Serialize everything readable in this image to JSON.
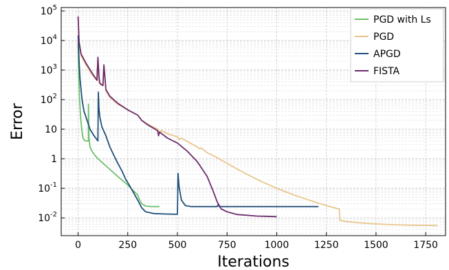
{
  "chart_data": {
    "type": "line",
    "title": "",
    "xlabel": "Iterations",
    "ylabel": "Error",
    "xlim": [
      -85,
      1850
    ],
    "ylim": [
      0.0025,
      130000
    ],
    "yscale": "log",
    "grid": true,
    "legend_position": "top-right",
    "x_ticks": [
      0,
      250,
      500,
      750,
      1000,
      1250,
      1500,
      1750
    ],
    "x_tick_labels": [
      "0",
      "250",
      "500",
      "750",
      "1000",
      "1250",
      "1500",
      "1750"
    ],
    "y_ticks": [
      0.01,
      0.1,
      1,
      10,
      100,
      1000,
      10000,
      100000
    ],
    "y_tick_labels": [
      {
        "base": "10",
        "exp": "-2"
      },
      {
        "base": "10",
        "exp": "-1"
      },
      {
        "base": "1",
        "exp": ""
      },
      {
        "base": "10",
        "exp": ""
      },
      {
        "base": "10",
        "exp": "2"
      },
      {
        "base": "10",
        "exp": "3"
      },
      {
        "base": "10",
        "exp": "4"
      },
      {
        "base": "10",
        "exp": "5"
      }
    ],
    "series": [
      {
        "name": "PGD with Ls",
        "color": "#6cbf6a",
        "points": [
          [
            0,
            8000
          ],
          [
            3,
            800
          ],
          [
            7,
            120
          ],
          [
            12,
            30
          ],
          [
            18,
            10
          ],
          [
            25,
            5
          ],
          [
            35,
            4
          ],
          [
            45,
            4
          ],
          [
            52,
            4
          ],
          [
            52,
            70
          ],
          [
            55,
            5
          ],
          [
            60,
            2.5
          ],
          [
            70,
            1.8
          ],
          [
            85,
            1.3
          ],
          [
            100,
            1.0
          ],
          [
            150,
            0.5
          ],
          [
            200,
            0.25
          ],
          [
            250,
            0.13
          ],
          [
            280,
            0.08
          ],
          [
            300,
            0.06
          ],
          [
            310,
            0.04
          ],
          [
            320,
            0.03
          ],
          [
            340,
            0.025
          ],
          [
            370,
            0.024
          ],
          [
            410,
            0.024
          ]
        ]
      },
      {
        "name": "PGD",
        "color": "#e9c48a",
        "points": [
          [
            0,
            60000
          ],
          [
            5,
            8000
          ],
          [
            15,
            3000
          ],
          [
            40,
            1500
          ],
          [
            70,
            700
          ],
          [
            95,
            450
          ],
          [
            100,
            2500
          ],
          [
            105,
            400
          ],
          [
            125,
            300
          ],
          [
            130,
            1500
          ],
          [
            140,
            200
          ],
          [
            160,
            120
          ],
          [
            200,
            70
          ],
          [
            250,
            45
          ],
          [
            300,
            30
          ],
          [
            310,
            25
          ],
          [
            320,
            20
          ],
          [
            350,
            15
          ],
          [
            400,
            10
          ],
          [
            410,
            8
          ],
          [
            420,
            9
          ],
          [
            450,
            7
          ],
          [
            500,
            5.5
          ],
          [
            510,
            4.5
          ],
          [
            520,
            5
          ],
          [
            560,
            3.5
          ],
          [
            600,
            2.5
          ],
          [
            610,
            2.2
          ],
          [
            620,
            2.3
          ],
          [
            650,
            1.6
          ],
          [
            700,
            1.1
          ],
          [
            720,
            0.9
          ],
          [
            750,
            0.7
          ],
          [
            800,
            0.45
          ],
          [
            850,
            0.3
          ],
          [
            900,
            0.2
          ],
          [
            1000,
            0.1
          ],
          [
            1100,
            0.055
          ],
          [
            1200,
            0.033
          ],
          [
            1250,
            0.026
          ],
          [
            1300,
            0.021
          ],
          [
            1315,
            0.02
          ],
          [
            1318,
            0.0082
          ],
          [
            1350,
            0.0075
          ],
          [
            1450,
            0.0065
          ],
          [
            1550,
            0.006
          ],
          [
            1650,
            0.0057
          ],
          [
            1810,
            0.0055
          ]
        ]
      },
      {
        "name": "APGD",
        "color": "#1f4e79",
        "points": [
          [
            0,
            15000
          ],
          [
            5,
            2000
          ],
          [
            10,
            500
          ],
          [
            20,
            100
          ],
          [
            30,
            40
          ],
          [
            45,
            20
          ],
          [
            60,
            10
          ],
          [
            80,
            6
          ],
          [
            100,
            4
          ],
          [
            102,
            180
          ],
          [
            105,
            50
          ],
          [
            110,
            25
          ],
          [
            120,
            12
          ],
          [
            140,
            6
          ],
          [
            160,
            2.5
          ],
          [
            180,
            1.3
          ],
          [
            200,
            0.7
          ],
          [
            220,
            0.4
          ],
          [
            240,
            0.2
          ],
          [
            260,
            0.12
          ],
          [
            280,
            0.07
          ],
          [
            300,
            0.04
          ],
          [
            310,
            0.03
          ],
          [
            320,
            0.022
          ],
          [
            340,
            0.016
          ],
          [
            380,
            0.014
          ],
          [
            440,
            0.0135
          ],
          [
            500,
            0.0132
          ],
          [
            503,
            0.32
          ],
          [
            508,
            0.12
          ],
          [
            520,
            0.04
          ],
          [
            540,
            0.026
          ],
          [
            570,
            0.024
          ],
          [
            700,
            0.024
          ],
          [
            705,
            0.028
          ],
          [
            710,
            0.024
          ],
          [
            1210,
            0.024
          ]
        ]
      },
      {
        "name": "FISTA",
        "color": "#6b2a6b",
        "points": [
          [
            0,
            65000
          ],
          [
            5,
            9000
          ],
          [
            15,
            3500
          ],
          [
            40,
            1700
          ],
          [
            70,
            800
          ],
          [
            95,
            450
          ],
          [
            100,
            2700
          ],
          [
            105,
            600
          ],
          [
            110,
            350
          ],
          [
            125,
            300
          ],
          [
            130,
            1500
          ],
          [
            140,
            220
          ],
          [
            160,
            130
          ],
          [
            200,
            75
          ],
          [
            250,
            45
          ],
          [
            300,
            30
          ],
          [
            320,
            20
          ],
          [
            350,
            14
          ],
          [
            400,
            9
          ],
          [
            405,
            6
          ],
          [
            410,
            8
          ],
          [
            450,
            5
          ],
          [
            500,
            3.4
          ],
          [
            550,
            1.8
          ],
          [
            600,
            0.8
          ],
          [
            650,
            0.25
          ],
          [
            680,
            0.08
          ],
          [
            700,
            0.035
          ],
          [
            720,
            0.02
          ],
          [
            750,
            0.016
          ],
          [
            800,
            0.013
          ],
          [
            900,
            0.0115
          ],
          [
            1000,
            0.011
          ]
        ]
      }
    ]
  }
}
